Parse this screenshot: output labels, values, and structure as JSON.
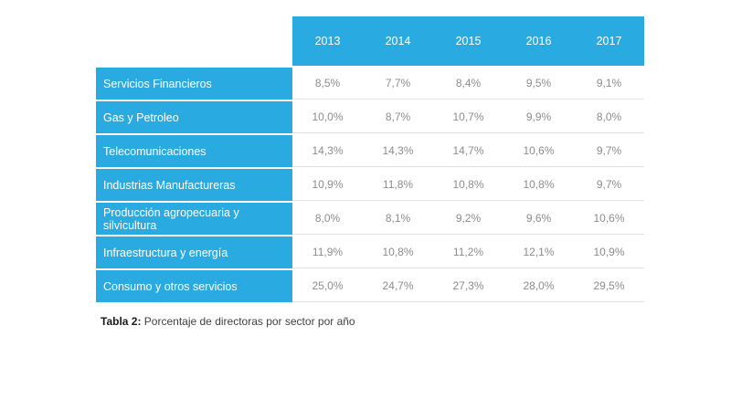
{
  "table": {
    "columns": [
      "2013",
      "2014",
      "2015",
      "2016",
      "2017"
    ],
    "rows": [
      {
        "label": "Servicios Financieros",
        "values": [
          "8,5%",
          "7,7%",
          "8,4%",
          "9,5%",
          "9,1%"
        ]
      },
      {
        "label": "Gas y Petroleo",
        "values": [
          "10,0%",
          "8,7%",
          "10,7%",
          "9,9%",
          "8,0%"
        ]
      },
      {
        "label": "Telecomunicaciones",
        "values": [
          "14,3%",
          "14,3%",
          "14,7%",
          "10,6%",
          "9,7%"
        ]
      },
      {
        "label": "Industrias Manufactureras",
        "values": [
          "10,9%",
          "11,8%",
          "10,8%",
          "10,8%",
          "9,7%"
        ]
      },
      {
        "label": "Producción agropecuaria y silvicultura",
        "values": [
          "8,0%",
          "8,1%",
          "9,2%",
          "9,6%",
          "10,6%"
        ]
      },
      {
        "label": "Infraestructura y energía",
        "values": [
          "11,9%",
          "10,8%",
          "11,2%",
          "12,1%",
          "10,9%"
        ]
      },
      {
        "label": "Consumo y otros servicios",
        "values": [
          "25,0%",
          "24,7%",
          "27,3%",
          "28,0%",
          "29,5%"
        ]
      }
    ]
  },
  "caption": {
    "label": "Tabla 2:",
    "text": " Porcentaje de directoras por sector por año"
  },
  "colors": {
    "accent": "#29ABE2",
    "data_text": "#8C8C8C",
    "separator": "#E2E2E2"
  },
  "chart_data": {
    "type": "table",
    "title": "Tabla 2: Porcentaje de directoras por sector por año",
    "categories": [
      "2013",
      "2014",
      "2015",
      "2016",
      "2017"
    ],
    "unit": "%",
    "series": [
      {
        "name": "Servicios Financieros",
        "values": [
          8.5,
          7.7,
          8.4,
          9.5,
          9.1
        ]
      },
      {
        "name": "Gas y Petroleo",
        "values": [
          10.0,
          8.7,
          10.7,
          9.9,
          8.0
        ]
      },
      {
        "name": "Telecomunicaciones",
        "values": [
          14.3,
          14.3,
          14.7,
          10.6,
          9.7
        ]
      },
      {
        "name": "Industrias Manufactureras",
        "values": [
          10.9,
          11.8,
          10.8,
          10.8,
          9.7
        ]
      },
      {
        "name": "Producción agropecuaria y silvicultura",
        "values": [
          8.0,
          8.1,
          9.2,
          9.6,
          10.6
        ]
      },
      {
        "name": "Infraestructura y energía",
        "values": [
          11.9,
          10.8,
          11.2,
          12.1,
          10.9
        ]
      },
      {
        "name": "Consumo y otros servicios",
        "values": [
          25.0,
          24.7,
          27.3,
          28.0,
          29.5
        ]
      }
    ]
  }
}
